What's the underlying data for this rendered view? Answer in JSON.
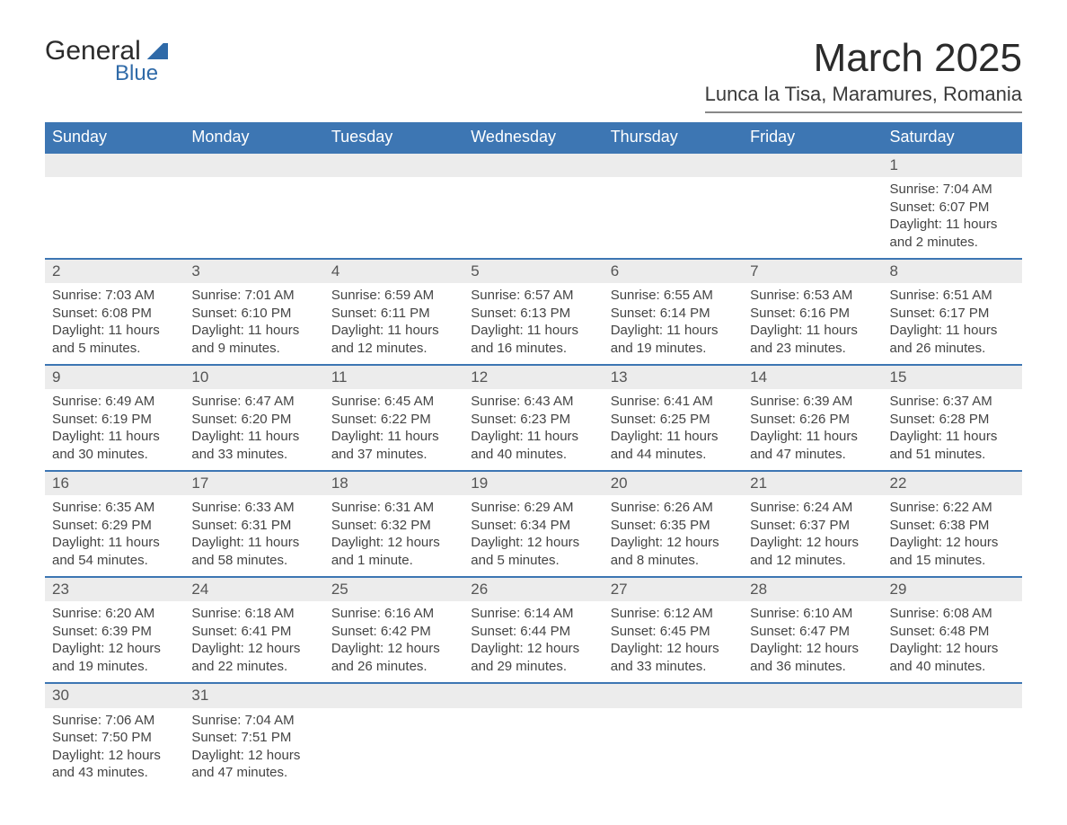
{
  "logo": {
    "word1": "General",
    "word2": "Blue"
  },
  "title": "March 2025",
  "location": "Lunca la Tisa, Maramures, Romania",
  "colors": {
    "header_bg": "#3d76b3",
    "header_text": "#ffffff",
    "daynum_bg": "#ececec",
    "border": "#3d76b3",
    "logo_accent": "#2f6aa8",
    "body_text": "#3a3a3a"
  },
  "fonts": {
    "title_size_pt": 44,
    "location_size_pt": 22,
    "header_size_pt": 18,
    "daynum_size_pt": 17,
    "body_size_pt": 15
  },
  "weekdays": [
    "Sunday",
    "Monday",
    "Tuesday",
    "Wednesday",
    "Thursday",
    "Friday",
    "Saturday"
  ],
  "weeks": [
    [
      null,
      null,
      null,
      null,
      null,
      null,
      {
        "n": "1",
        "sr": "Sunrise: 7:04 AM",
        "ss": "Sunset: 6:07 PM",
        "d1": "Daylight: 11 hours",
        "d2": "and 2 minutes."
      }
    ],
    [
      {
        "n": "2",
        "sr": "Sunrise: 7:03 AM",
        "ss": "Sunset: 6:08 PM",
        "d1": "Daylight: 11 hours",
        "d2": "and 5 minutes."
      },
      {
        "n": "3",
        "sr": "Sunrise: 7:01 AM",
        "ss": "Sunset: 6:10 PM",
        "d1": "Daylight: 11 hours",
        "d2": "and 9 minutes."
      },
      {
        "n": "4",
        "sr": "Sunrise: 6:59 AM",
        "ss": "Sunset: 6:11 PM",
        "d1": "Daylight: 11 hours",
        "d2": "and 12 minutes."
      },
      {
        "n": "5",
        "sr": "Sunrise: 6:57 AM",
        "ss": "Sunset: 6:13 PM",
        "d1": "Daylight: 11 hours",
        "d2": "and 16 minutes."
      },
      {
        "n": "6",
        "sr": "Sunrise: 6:55 AM",
        "ss": "Sunset: 6:14 PM",
        "d1": "Daylight: 11 hours",
        "d2": "and 19 minutes."
      },
      {
        "n": "7",
        "sr": "Sunrise: 6:53 AM",
        "ss": "Sunset: 6:16 PM",
        "d1": "Daylight: 11 hours",
        "d2": "and 23 minutes."
      },
      {
        "n": "8",
        "sr": "Sunrise: 6:51 AM",
        "ss": "Sunset: 6:17 PM",
        "d1": "Daylight: 11 hours",
        "d2": "and 26 minutes."
      }
    ],
    [
      {
        "n": "9",
        "sr": "Sunrise: 6:49 AM",
        "ss": "Sunset: 6:19 PM",
        "d1": "Daylight: 11 hours",
        "d2": "and 30 minutes."
      },
      {
        "n": "10",
        "sr": "Sunrise: 6:47 AM",
        "ss": "Sunset: 6:20 PM",
        "d1": "Daylight: 11 hours",
        "d2": "and 33 minutes."
      },
      {
        "n": "11",
        "sr": "Sunrise: 6:45 AM",
        "ss": "Sunset: 6:22 PM",
        "d1": "Daylight: 11 hours",
        "d2": "and 37 minutes."
      },
      {
        "n": "12",
        "sr": "Sunrise: 6:43 AM",
        "ss": "Sunset: 6:23 PM",
        "d1": "Daylight: 11 hours",
        "d2": "and 40 minutes."
      },
      {
        "n": "13",
        "sr": "Sunrise: 6:41 AM",
        "ss": "Sunset: 6:25 PM",
        "d1": "Daylight: 11 hours",
        "d2": "and 44 minutes."
      },
      {
        "n": "14",
        "sr": "Sunrise: 6:39 AM",
        "ss": "Sunset: 6:26 PM",
        "d1": "Daylight: 11 hours",
        "d2": "and 47 minutes."
      },
      {
        "n": "15",
        "sr": "Sunrise: 6:37 AM",
        "ss": "Sunset: 6:28 PM",
        "d1": "Daylight: 11 hours",
        "d2": "and 51 minutes."
      }
    ],
    [
      {
        "n": "16",
        "sr": "Sunrise: 6:35 AM",
        "ss": "Sunset: 6:29 PM",
        "d1": "Daylight: 11 hours",
        "d2": "and 54 minutes."
      },
      {
        "n": "17",
        "sr": "Sunrise: 6:33 AM",
        "ss": "Sunset: 6:31 PM",
        "d1": "Daylight: 11 hours",
        "d2": "and 58 minutes."
      },
      {
        "n": "18",
        "sr": "Sunrise: 6:31 AM",
        "ss": "Sunset: 6:32 PM",
        "d1": "Daylight: 12 hours",
        "d2": "and 1 minute."
      },
      {
        "n": "19",
        "sr": "Sunrise: 6:29 AM",
        "ss": "Sunset: 6:34 PM",
        "d1": "Daylight: 12 hours",
        "d2": "and 5 minutes."
      },
      {
        "n": "20",
        "sr": "Sunrise: 6:26 AM",
        "ss": "Sunset: 6:35 PM",
        "d1": "Daylight: 12 hours",
        "d2": "and 8 minutes."
      },
      {
        "n": "21",
        "sr": "Sunrise: 6:24 AM",
        "ss": "Sunset: 6:37 PM",
        "d1": "Daylight: 12 hours",
        "d2": "and 12 minutes."
      },
      {
        "n": "22",
        "sr": "Sunrise: 6:22 AM",
        "ss": "Sunset: 6:38 PM",
        "d1": "Daylight: 12 hours",
        "d2": "and 15 minutes."
      }
    ],
    [
      {
        "n": "23",
        "sr": "Sunrise: 6:20 AM",
        "ss": "Sunset: 6:39 PM",
        "d1": "Daylight: 12 hours",
        "d2": "and 19 minutes."
      },
      {
        "n": "24",
        "sr": "Sunrise: 6:18 AM",
        "ss": "Sunset: 6:41 PM",
        "d1": "Daylight: 12 hours",
        "d2": "and 22 minutes."
      },
      {
        "n": "25",
        "sr": "Sunrise: 6:16 AM",
        "ss": "Sunset: 6:42 PM",
        "d1": "Daylight: 12 hours",
        "d2": "and 26 minutes."
      },
      {
        "n": "26",
        "sr": "Sunrise: 6:14 AM",
        "ss": "Sunset: 6:44 PM",
        "d1": "Daylight: 12 hours",
        "d2": "and 29 minutes."
      },
      {
        "n": "27",
        "sr": "Sunrise: 6:12 AM",
        "ss": "Sunset: 6:45 PM",
        "d1": "Daylight: 12 hours",
        "d2": "and 33 minutes."
      },
      {
        "n": "28",
        "sr": "Sunrise: 6:10 AM",
        "ss": "Sunset: 6:47 PM",
        "d1": "Daylight: 12 hours",
        "d2": "and 36 minutes."
      },
      {
        "n": "29",
        "sr": "Sunrise: 6:08 AM",
        "ss": "Sunset: 6:48 PM",
        "d1": "Daylight: 12 hours",
        "d2": "and 40 minutes."
      }
    ],
    [
      {
        "n": "30",
        "sr": "Sunrise: 7:06 AM",
        "ss": "Sunset: 7:50 PM",
        "d1": "Daylight: 12 hours",
        "d2": "and 43 minutes."
      },
      {
        "n": "31",
        "sr": "Sunrise: 7:04 AM",
        "ss": "Sunset: 7:51 PM",
        "d1": "Daylight: 12 hours",
        "d2": "and 47 minutes."
      },
      null,
      null,
      null,
      null,
      null
    ]
  ]
}
